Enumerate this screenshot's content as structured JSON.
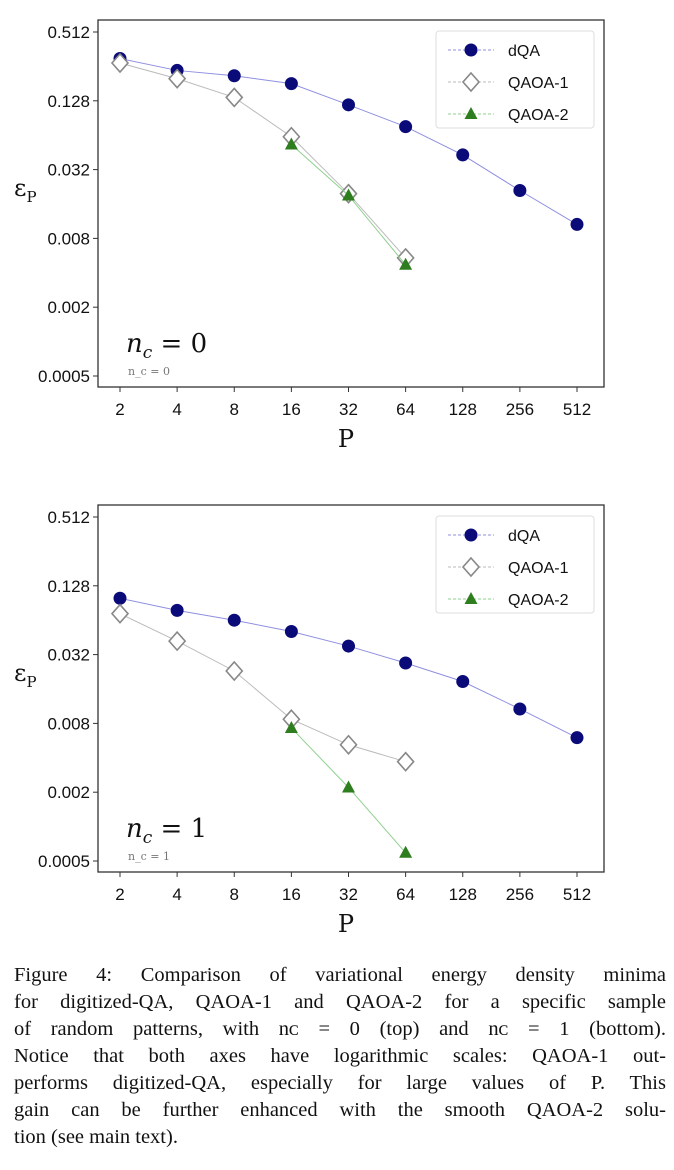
{
  "chart_data": [
    {
      "type": "line",
      "xscale": "log2",
      "yscale": "log",
      "x": [
        2,
        4,
        8,
        16,
        32,
        64,
        128,
        256,
        512
      ],
      "xticks": [
        "2",
        "4",
        "8",
        "16",
        "32",
        "64",
        "128",
        "256",
        "512"
      ],
      "yticks": [
        0.512,
        0.128,
        0.032,
        0.008,
        0.002,
        0.0005
      ],
      "ytick_labels": [
        "0.512",
        "0.128",
        "0.032",
        "0.008",
        "0.002",
        "0.0005"
      ],
      "xlim": [
        1.7,
        700
      ],
      "ylim": [
        0.00037,
        0.74
      ],
      "xlabel": "P",
      "ylabel": "ε",
      "ylabel_sub": "P",
      "annotation": "n_c = 0",
      "annotation_main": "n",
      "annotation_sub": "c",
      "annotation_rest": " = 0",
      "legend_position": "top-right",
      "series": [
        {
          "name": "dQA",
          "marker": "circle",
          "color": "#0a0a78",
          "line_color": "#8f8fe0",
          "x": [
            2,
            4,
            8,
            16,
            32,
            64,
            128,
            256,
            512
          ],
          "values": [
            0.3,
            0.236,
            0.212,
            0.181,
            0.118,
            0.076,
            0.043,
            0.021,
            0.0106
          ]
        },
        {
          "name": "QAOA-1",
          "marker": "diamond",
          "color": "#888888",
          "line_color": "#bbbbbb",
          "x": [
            2,
            4,
            8,
            16,
            32,
            64
          ],
          "values": [
            0.274,
            0.2,
            0.137,
            0.062,
            0.0197,
            0.0054
          ]
        },
        {
          "name": "QAOA-2",
          "marker": "triangle",
          "color": "#2e7d1e",
          "line_color": "#8fd08f",
          "x": [
            16,
            32,
            64
          ],
          "values": [
            0.053,
            0.019,
            0.0047
          ]
        }
      ]
    },
    {
      "type": "line",
      "xscale": "log2",
      "yscale": "log",
      "x": [
        2,
        4,
        8,
        16,
        32,
        64,
        128,
        256,
        512
      ],
      "xticks": [
        "2",
        "4",
        "8",
        "16",
        "32",
        "64",
        "128",
        "256",
        "512"
      ],
      "yticks": [
        0.512,
        0.128,
        0.032,
        0.008,
        0.002,
        0.0005
      ],
      "ytick_labels": [
        "0.512",
        "0.128",
        "0.032",
        "0.008",
        "0.002",
        "0.0005"
      ],
      "xlim": [
        1.7,
        700
      ],
      "ylim": [
        0.00037,
        0.74
      ],
      "xlabel": "P",
      "ylabel": "ε",
      "ylabel_sub": "P",
      "annotation": "n_c = 1",
      "annotation_main": "n",
      "annotation_sub": "c",
      "annotation_rest": " = 1",
      "legend_position": "top-right",
      "series": [
        {
          "name": "dQA",
          "marker": "circle",
          "color": "#0a0a78",
          "line_color": "#8f8fe0",
          "x": [
            2,
            4,
            8,
            16,
            32,
            64,
            128,
            256,
            512
          ],
          "values": [
            0.0996,
            0.078,
            0.064,
            0.051,
            0.038,
            0.027,
            0.0186,
            0.0107,
            0.006
          ]
        },
        {
          "name": "QAOA-1",
          "marker": "diamond",
          "color": "#888888",
          "line_color": "#bbbbbb",
          "x": [
            2,
            4,
            8,
            16,
            32,
            64
          ],
          "values": [
            0.073,
            0.042,
            0.023,
            0.0087,
            0.0052,
            0.0037
          ]
        },
        {
          "name": "QAOA-2",
          "marker": "triangle",
          "color": "#2e7d1e",
          "line_color": "#8fd08f",
          "x": [
            16,
            32,
            64
          ],
          "values": [
            0.0073,
            0.0022,
            0.00059
          ]
        }
      ]
    }
  ],
  "caption": {
    "lines": [
      "Figure 4:  Comparison of variational energy density minima",
      "for digitized-QA, QAOA-1 and QAOA-2 for a specific sample",
      "of random patterns, with nᴄ = 0 (top) and nᴄ = 1 (bottom).",
      "Notice that both axes have logarithmic scales: QAOA-1 out-",
      "performs digitized-QA, especially for large values of P.  This",
      "gain can be further enhanced with the smooth QAOA-2 solu-",
      "tion (see main text)."
    ]
  }
}
